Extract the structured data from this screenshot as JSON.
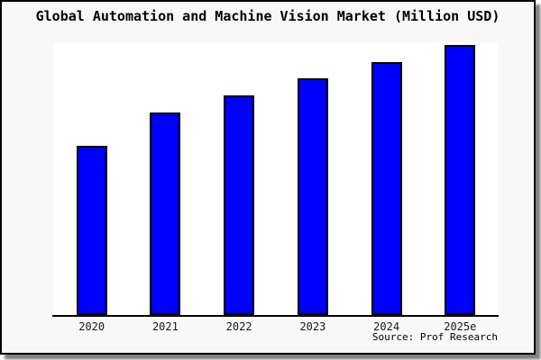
{
  "window": {
    "title": "Global Automation and Machine Vision Market (Million USD)",
    "source_label": "Source: Prof Research"
  },
  "colors": {
    "bar_fill": "#0000ff",
    "bar_border": "#000000",
    "card_background": "#f8f8f8",
    "plot_background": "#ffffff",
    "axis_line": "#000000",
    "title_text": "#000000",
    "tick_text": "#1a1a1a"
  },
  "chart_data": {
    "type": "bar",
    "title": "Global Automation and Machine Vision Market (Million USD)",
    "categories": [
      "2020",
      "2021",
      "2022",
      "2023",
      "2024",
      "2025e"
    ],
    "values": [
      188,
      225,
      244,
      263,
      281,
      300
    ],
    "values_unit": "relative height (y-axis unlabeled in image)",
    "xlabel": "",
    "ylabel": "",
    "ylim": [
      0,
      303
    ],
    "grid": false,
    "legend": false,
    "y_axis_labeled": false,
    "source": "Source: Prof Research"
  }
}
